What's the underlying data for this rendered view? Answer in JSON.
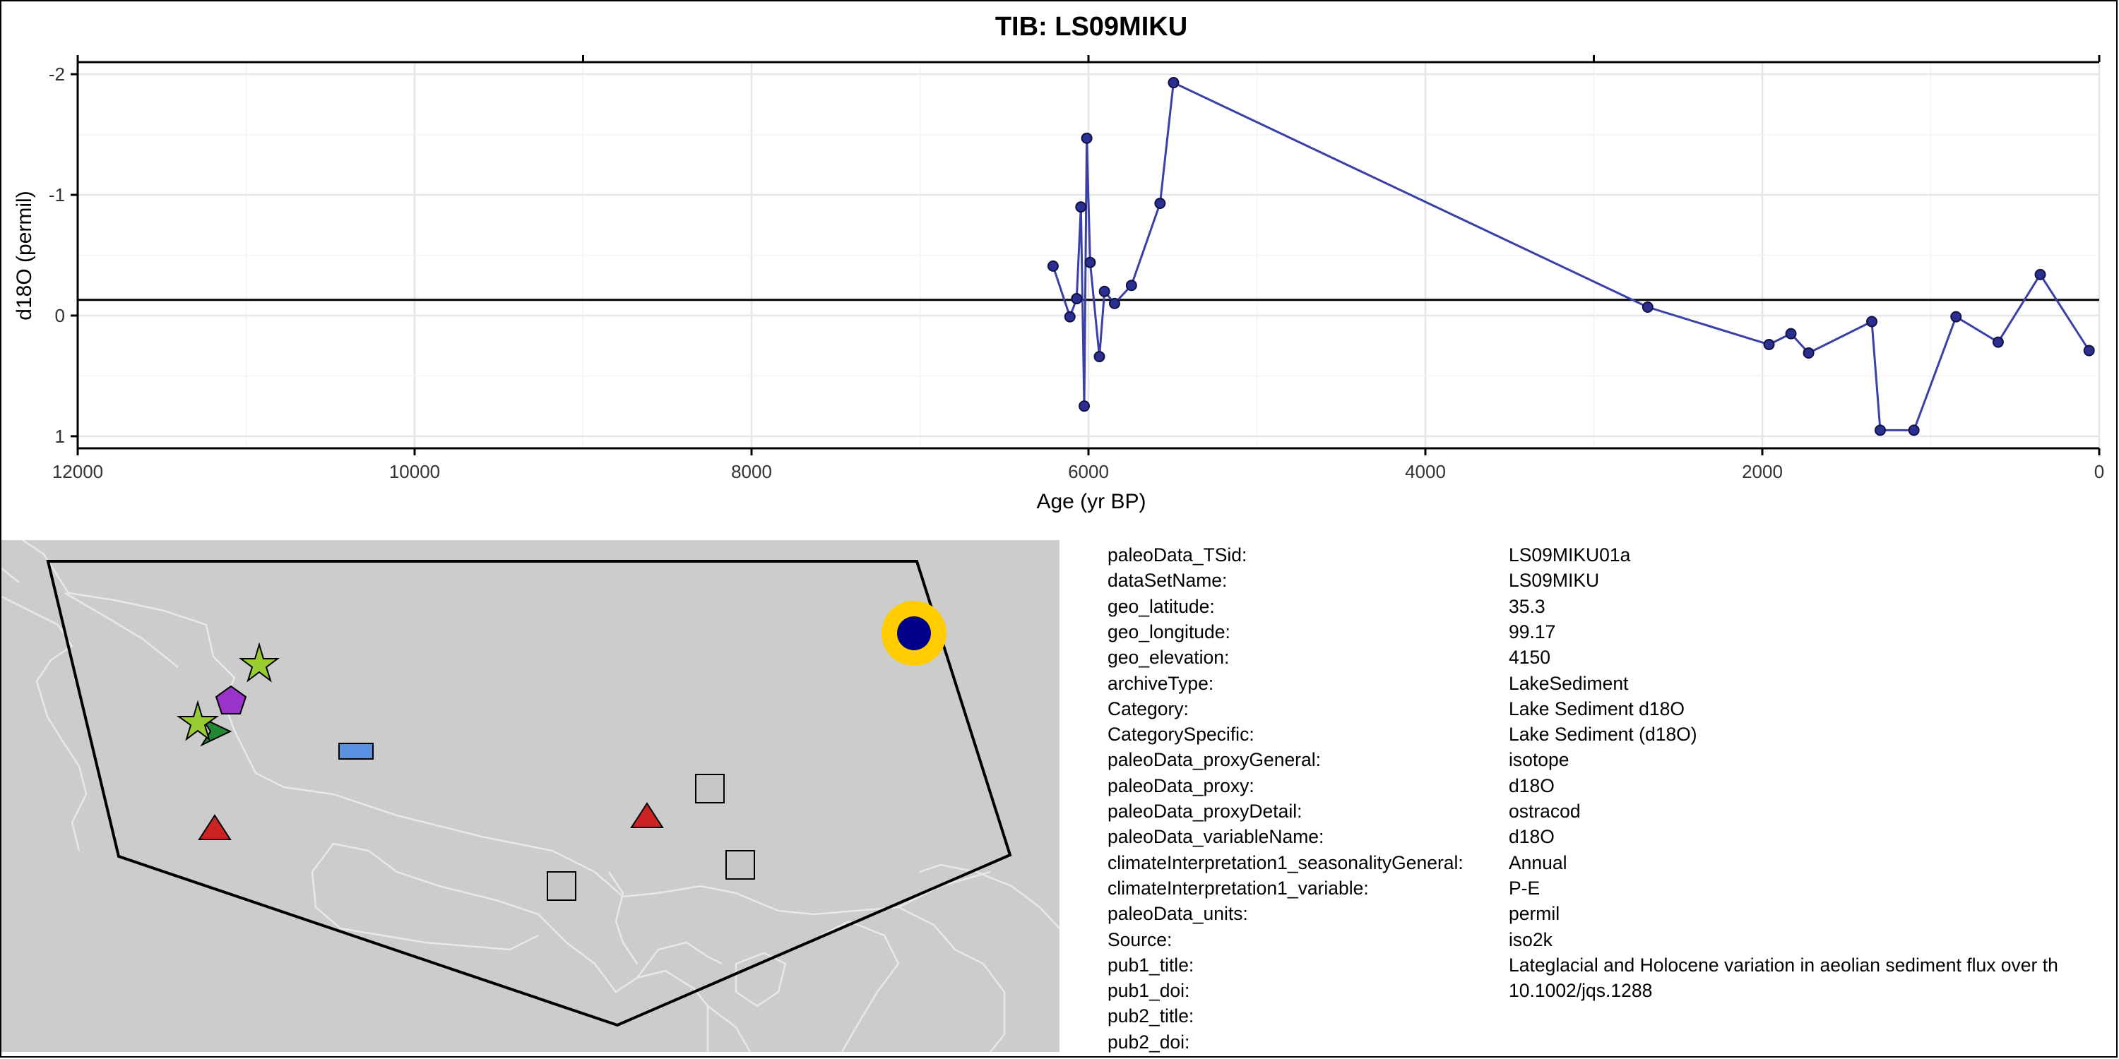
{
  "chart_data": {
    "type": "line",
    "title": "TIB: LS09MIKU",
    "xlabel": "Age (yr BP)",
    "ylabel": "d18O (permil)",
    "xlim": [
      12000,
      0
    ],
    "ylim": [
      1.1,
      -2.1
    ],
    "x_reversed": true,
    "y_reversed": true,
    "x_ticks": [
      12000,
      10000,
      8000,
      6000,
      4000,
      2000,
      0
    ],
    "y_ticks": [
      -2,
      -1,
      0,
      1
    ],
    "x_ticks_top": [
      9000,
      6000,
      3000
    ],
    "grid": true,
    "reference_line_y": -0.13,
    "series": [
      {
        "color": "#3b3fa8",
        "x": [
          6210,
          6110,
          6070,
          6045,
          6025,
          6010,
          5990,
          5935,
          5905,
          5845,
          5745,
          5575,
          5495,
          2680,
          1960,
          1830,
          1725,
          1350,
          1300,
          1100,
          850,
          600,
          350,
          60
        ],
        "y": [
          -0.41,
          0.01,
          -0.14,
          -0.9,
          0.75,
          -1.47,
          -0.44,
          0.34,
          -0.2,
          -0.1,
          -0.25,
          -0.93,
          -1.93,
          -0.07,
          0.24,
          0.15,
          0.31,
          0.05,
          0.95,
          0.95,
          0.01,
          0.22,
          -0.34,
          0.29
        ]
      }
    ]
  },
  "map": {
    "land_color": "#cccccc",
    "boundary_color": "#e8e8e8",
    "polygon_color": "#000000",
    "markers": [
      {
        "shape": "star-icon",
        "color": "#99cc33"
      },
      {
        "shape": "pentagon-icon",
        "color": "#9933cc"
      },
      {
        "shape": "star-icon",
        "color": "#99cc33"
      },
      {
        "shape": "arrow-icon",
        "color": "#228833"
      },
      {
        "shape": "rectangle-icon",
        "color": "#5b8fe0"
      },
      {
        "shape": "triangle-icon",
        "color": "#cc2222"
      },
      {
        "shape": "triangle-icon",
        "color": "#cc2222"
      },
      {
        "shape": "square-icon",
        "color": "#c8c8c8"
      },
      {
        "shape": "square-icon",
        "color": "#c8c8c8"
      },
      {
        "shape": "square-icon",
        "color": "#c8c8c8"
      },
      {
        "shape": "target-circle-icon",
        "color": "#000088",
        "ring_color": "#ffcc00"
      }
    ]
  },
  "metadata": [
    {
      "key": "paleoData_TSid:",
      "value": "LS09MIKU01a"
    },
    {
      "key": "dataSetName:",
      "value": "LS09MIKU"
    },
    {
      "key": "geo_latitude:",
      "value": "35.3"
    },
    {
      "key": "geo_longitude:",
      "value": "99.17"
    },
    {
      "key": "geo_elevation:",
      "value": "4150"
    },
    {
      "key": "archiveType:",
      "value": "LakeSediment"
    },
    {
      "key": "Category:",
      "value": "Lake Sediment d18O"
    },
    {
      "key": "CategorySpecific:",
      "value": "Lake Sediment (d18O)"
    },
    {
      "key": "paleoData_proxyGeneral:",
      "value": "isotope"
    },
    {
      "key": "paleoData_proxy:",
      "value": "d18O"
    },
    {
      "key": "paleoData_proxyDetail:",
      "value": "ostracod"
    },
    {
      "key": "paleoData_variableName:",
      "value": "d18O"
    },
    {
      "key": "climateInterpretation1_seasonalityGeneral:",
      "value": "Annual"
    },
    {
      "key": "climateInterpretation1_variable:",
      "value": "P-E"
    },
    {
      "key": "paleoData_units:",
      "value": "permil"
    },
    {
      "key": "Source:",
      "value": "iso2k"
    },
    {
      "key": "pub1_title:",
      "value": "Lateglacial and Holocene variation in aeolian sediment flux over th"
    },
    {
      "key": "pub1_doi:",
      "value": "10.1002/jqs.1288"
    },
    {
      "key": "pub2_title:",
      "value": ""
    },
    {
      "key": "pub2_doi:",
      "value": ""
    }
  ]
}
